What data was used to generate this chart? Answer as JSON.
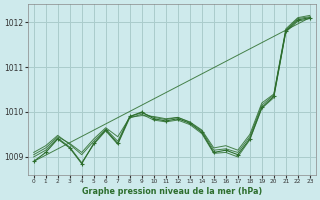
{
  "background_color": "#ceeaec",
  "grid_color": "#aacccc",
  "line_color": "#2d6e2d",
  "title": "Graphe pression niveau de la mer (hPa)",
  "xlim": [
    -0.5,
    23.5
  ],
  "ylim": [
    1008.6,
    1012.4
  ],
  "yticks": [
    1009,
    1010,
    1011,
    1012
  ],
  "xticks": [
    0,
    1,
    2,
    3,
    4,
    5,
    6,
    7,
    8,
    9,
    10,
    11,
    12,
    13,
    14,
    15,
    16,
    17,
    18,
    19,
    20,
    21,
    22,
    23
  ],
  "series": [
    {
      "x": [
        0,
        1,
        2,
        3,
        4,
        5,
        6,
        7,
        8,
        9,
        10,
        11,
        12,
        13,
        14,
        15,
        16,
        17,
        18,
        19,
        20,
        21,
        22,
        23
      ],
      "y": [
        1008.9,
        1009.1,
        1009.4,
        1009.2,
        1008.85,
        1009.3,
        1009.6,
        1009.3,
        1009.9,
        1010.0,
        1009.85,
        1009.8,
        1009.85,
        1009.75,
        1009.55,
        1009.1,
        1009.15,
        1009.05,
        1009.4,
        1010.1,
        1010.35,
        1011.8,
        1012.05,
        1012.1
      ],
      "has_markers": true
    },
    {
      "x": [
        0,
        1,
        2,
        3,
        4,
        5,
        6,
        7,
        8,
        9,
        10,
        11,
        12,
        13,
        14,
        15,
        16,
        17,
        18,
        19,
        20,
        21,
        22,
        23
      ],
      "y": [
        1009.05,
        1009.2,
        1009.45,
        1009.3,
        1009.1,
        1009.4,
        1009.65,
        1009.45,
        1009.88,
        1009.92,
        1009.9,
        1009.85,
        1009.88,
        1009.78,
        1009.6,
        1009.2,
        1009.25,
        1009.15,
        1009.5,
        1010.2,
        1010.4,
        1011.85,
        1012.1,
        1012.15
      ],
      "has_markers": false
    },
    {
      "x": [
        0,
        23
      ],
      "y": [
        1008.9,
        1012.1
      ],
      "has_markers": false
    },
    {
      "x": [
        0,
        1,
        2,
        3,
        4,
        5,
        6,
        7,
        8,
        9,
        10,
        11,
        12,
        13,
        14,
        15,
        16,
        17,
        18,
        19,
        20,
        21,
        22,
        23
      ],
      "y": [
        1009.0,
        1009.15,
        1009.42,
        1009.22,
        1008.87,
        1009.28,
        1009.58,
        1009.28,
        1009.87,
        1009.95,
        1009.82,
        1009.78,
        1009.82,
        1009.72,
        1009.52,
        1009.08,
        1009.1,
        1009.0,
        1009.38,
        1010.08,
        1010.32,
        1011.78,
        1012.02,
        1012.08
      ],
      "has_markers": false
    },
    {
      "x": [
        0,
        1,
        2,
        3,
        4,
        5,
        6,
        7,
        8,
        9,
        10,
        11,
        12,
        13,
        14,
        15,
        16,
        17,
        18,
        19,
        20,
        21,
        22,
        23
      ],
      "y": [
        1009.1,
        1009.25,
        1009.48,
        1009.28,
        1009.05,
        1009.35,
        1009.62,
        1009.35,
        1009.9,
        1009.98,
        1009.88,
        1009.83,
        1009.88,
        1009.77,
        1009.58,
        1009.15,
        1009.18,
        1009.1,
        1009.45,
        1010.15,
        1010.38,
        1011.82,
        1012.08,
        1012.12
      ],
      "has_markers": false
    }
  ]
}
